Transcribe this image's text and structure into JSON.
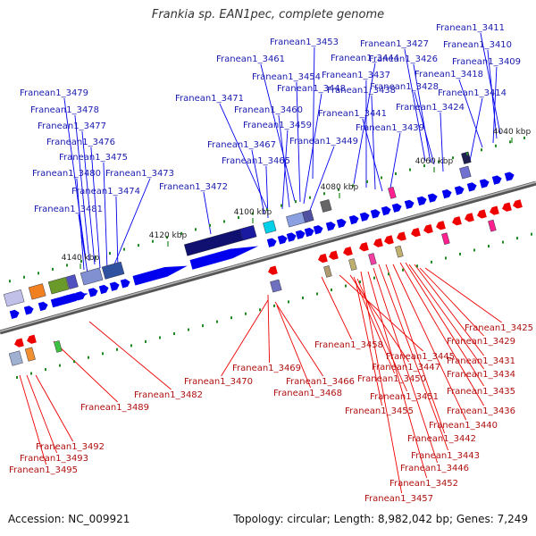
{
  "title": "Frankia sp. EAN1pec, complete genome",
  "footer": {
    "accession": "Accession: NC_009921",
    "summary": "Topology: circular; Length: 8,982,042 bp; Genes: 7,249"
  },
  "kbp_ticks": [
    "4040 kbp",
    "4060 kbp",
    "4080 kbp",
    "4100 kbp",
    "4120 kbp",
    "4140 kbp"
  ],
  "colors": {
    "forward_strand": "#0000ee",
    "reverse_strand": "#ee0000",
    "backbone": "#777777",
    "tick": "#228822",
    "forward_label": "#1a1ab0",
    "reverse_label": "#b01010"
  },
  "forward_labels": [
    "Franean1_3411",
    "Franean1_3410",
    "Franean1_3409",
    "Franean1_3418",
    "Franean1_3414",
    "Franean1_3427",
    "Franean1_3426",
    "Franean1_3428",
    "Franean1_3424",
    "Franean1_3453",
    "Franean1_3444",
    "Franean1_3437",
    "Franean1_3438",
    "Franean1_3441",
    "Franean1_3439",
    "Franean1_3461",
    "Franean1_3454",
    "Franean1_3448",
    "Franean1_3460",
    "Franean1_3459",
    "Franean1_3449",
    "Franean1_3471",
    "Franean1_3467",
    "Franean1_3465",
    "Franean1_3479",
    "Franean1_3478",
    "Franean1_3477",
    "Franean1_3476",
    "Franean1_3475",
    "Franean1_3480",
    "Franean1_3473",
    "Franean1_3474",
    "Franean1_3472",
    "Franean1_3481"
  ],
  "reverse_labels": [
    "Franean1_3425",
    "Franean1_3429",
    "Franean1_3431",
    "Franean1_3434",
    "Franean1_3435",
    "Franean1_3436",
    "Franean1_3440",
    "Franean1_3442",
    "Franean1_3443",
    "Franean1_3446",
    "Franean1_3452",
    "Franean1_3457",
    "Franean1_3458",
    "Franean1_3445",
    "Franean1_3447",
    "Franean1_3450",
    "Franean1_3451",
    "Franean1_3455",
    "Franean1_3469",
    "Franean1_3470",
    "Franean1_3466",
    "Franean1_3468",
    "Franean1_3482",
    "Franean1_3489",
    "Franean1_3492",
    "Franean1_3493",
    "Franean1_3495"
  ]
}
